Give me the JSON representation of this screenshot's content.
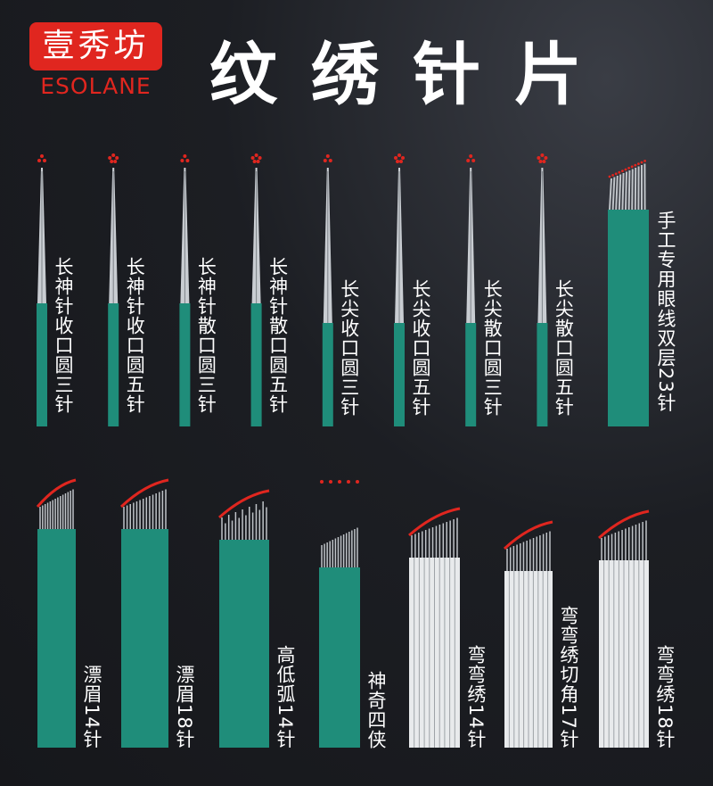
{
  "header": {
    "logo": "壹秀坊",
    "brand": "ESOLANE",
    "title": "纹绣针片"
  },
  "row1": [
    "长神针收口圆三针",
    "长神针收口圆五针",
    "长神针散口圆三针",
    "长神针散口圆五针",
    "长尖收口圆三针",
    "长尖收口圆五针",
    "长尖散口圆三针",
    "长尖散口圆五针",
    "手工专用眼线双层23针"
  ],
  "row2": [
    "漂眉14针",
    "漂眉18针",
    "高低弧14针",
    "神奇四侠",
    "弯弯绣14针",
    "弯弯绣切角17针",
    "弯弯绣18针"
  ]
}
